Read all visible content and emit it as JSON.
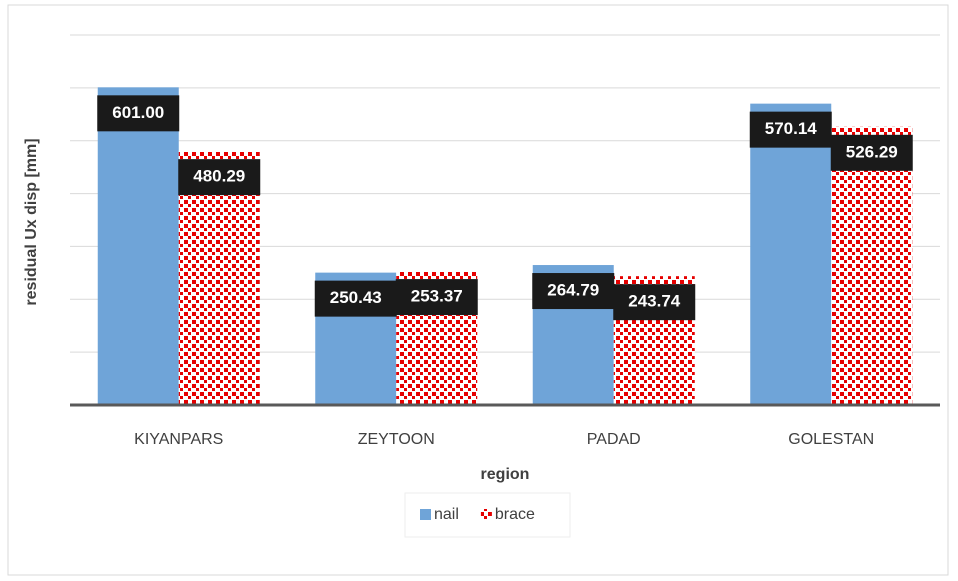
{
  "chart_data": {
    "type": "bar",
    "x_label": "region",
    "y_label": "residual Ux disp [mm]",
    "categories": [
      "KIYANPARS",
      "ZEYTOON",
      "PADAD",
      "GOLESTAN"
    ],
    "series": [
      {
        "name": "nail",
        "color": "#6fa4d8",
        "values": [
          601.0,
          250.43,
          264.79,
          570.14
        ],
        "value_labels": [
          "601.00",
          "250.43",
          "264.79",
          "570.14"
        ]
      },
      {
        "name": "brace",
        "color": "#e60000",
        "pattern": "checker",
        "values": [
          480.29,
          253.37,
          243.74,
          526.29
        ],
        "value_labels": [
          "480.29",
          "253.37",
          "243.74",
          "526.29"
        ]
      }
    ],
    "ylim": [
      0,
      700
    ],
    "yticks": [
      0,
      100,
      200,
      300,
      400,
      500,
      600,
      700
    ],
    "ytick_labels": false,
    "grid": true,
    "legend": "bottom"
  }
}
